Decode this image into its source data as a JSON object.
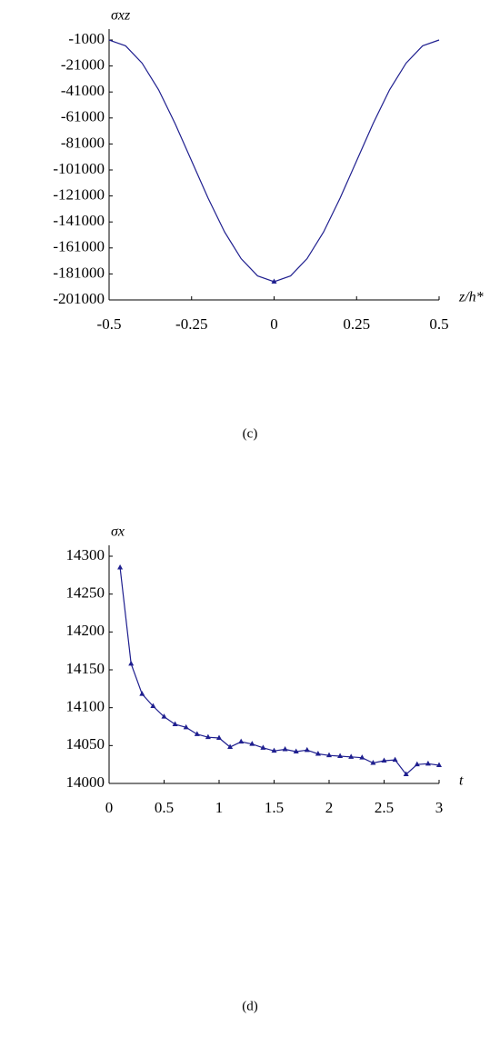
{
  "chart_data": [
    {
      "type": "line",
      "y_label": "σxz",
      "x_label": "z/h*",
      "caption": "(c)",
      "color": "#1f1f8f",
      "x": [
        -0.5,
        -0.45,
        -0.4,
        -0.35,
        -0.3,
        -0.25,
        -0.2,
        -0.15,
        -0.1,
        -0.05,
        0,
        0.05,
        0.1,
        0.15,
        0.2,
        0.25,
        0.3,
        0.35,
        0.4,
        0.45,
        0.5
      ],
      "values": [
        -1000,
        -5500,
        -18800,
        -39300,
        -65300,
        -94000,
        -122700,
        -148700,
        -169200,
        -182500,
        -187000,
        -182500,
        -169200,
        -148700,
        -122700,
        -94000,
        -65300,
        -39300,
        -18800,
        -5500,
        -1000
      ],
      "xlim": [
        -0.5,
        0.5
      ],
      "xticks": [
        -0.5,
        -0.25,
        0,
        0.25,
        0.5
      ],
      "ylim": [
        -201000,
        -1000
      ],
      "yticks": [
        -1000,
        -21000,
        -41000,
        -61000,
        -81000,
        -101000,
        -121000,
        -141000,
        -161000,
        -181000,
        -201000
      ]
    },
    {
      "type": "line",
      "y_label": "σx",
      "x_label": "t",
      "caption": "(d)",
      "color": "#1f1f8f",
      "markers": true,
      "x": [
        0.1,
        0.2,
        0.3,
        0.4,
        0.5,
        0.6,
        0.7,
        0.8,
        0.9,
        1.0,
        1.1,
        1.2,
        1.3,
        1.4,
        1.5,
        1.6,
        1.7,
        1.8,
        1.9,
        2.0,
        2.1,
        2.2,
        2.3,
        2.4,
        2.5,
        2.6,
        2.7,
        2.8,
        2.9,
        3.0
      ],
      "values": [
        14285,
        14158,
        14118,
        14102,
        14088,
        14078,
        14074,
        14065,
        14061,
        14060,
        14048,
        14055,
        14052,
        14047,
        14043,
        14045,
        14042,
        14044,
        14039,
        14037,
        14036,
        14035,
        14034,
        14027,
        14030,
        14031,
        14012,
        14025,
        14026,
        14024
      ],
      "xlim": [
        0,
        3
      ],
      "xticks": [
        0,
        0.5,
        1,
        1.5,
        2,
        2.5,
        3
      ],
      "ylim": [
        14000,
        14300
      ],
      "yticks": [
        14000,
        14050,
        14100,
        14150,
        14200,
        14250,
        14300
      ]
    }
  ]
}
